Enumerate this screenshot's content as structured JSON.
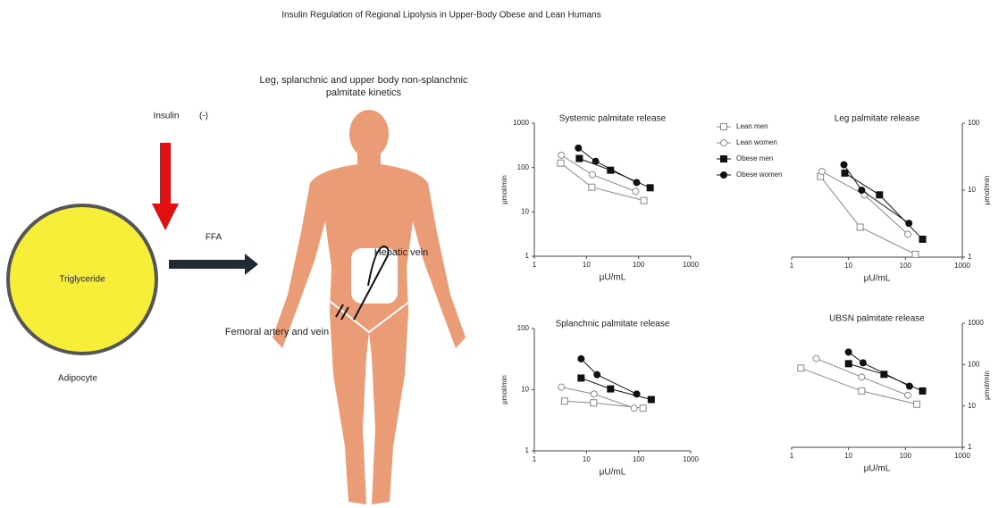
{
  "title": "Insulin Regulation of Regional Lipolysis in Upper-Body Obese and Lean Humans",
  "diagram": {
    "insulin_label": "Insulin",
    "insulin_sign": "(-)",
    "ffa_label": "FFA",
    "cell_label": "Triglyceride",
    "cell_name": "Adipocyte",
    "body_caption_lines": [
      "Leg, splanchnic and upper body non-splanchnic",
      "palmitate kinetics"
    ],
    "hepatic_label": "Hepatic vein",
    "femoral_label": "Femoral artery and vein"
  },
  "chart_data": [
    {
      "type": "scatter",
      "title": "Systemic palmitate release",
      "xlabel": "μU/mL",
      "ylabel": "μmol/min",
      "xlog": true,
      "ylog": true,
      "y_axis_side": "left",
      "xlim": [
        1,
        1000
      ],
      "xticks": [
        1,
        10,
        100,
        1000
      ],
      "ylim": [
        1,
        1000
      ],
      "yticks": [
        1,
        10,
        100,
        1000
      ],
      "series": [
        {
          "name": "Lean men",
          "marker": "open-square",
          "color": "#888888",
          "x": [
            3.2,
            12.7,
            126
          ],
          "values": [
            126,
            36,
            18
          ]
        },
        {
          "name": "Lean women",
          "marker": "open-circle",
          "color": "#888888",
          "x": [
            3.3,
            13,
            88
          ],
          "values": [
            190,
            69,
            29
          ]
        },
        {
          "name": "Obese men",
          "marker": "filled-square",
          "color": "#111111",
          "x": [
            7.3,
            29,
            167
          ],
          "values": [
            160,
            87,
            35
          ]
        },
        {
          "name": "Obese women",
          "marker": "filled-circle",
          "color": "#111111",
          "x": [
            7,
            15,
            92
          ],
          "values": [
            275,
            138,
            46
          ]
        }
      ]
    },
    {
      "type": "scatter",
      "title": "Leg palmitate release",
      "xlabel": "μU/mL",
      "ylabel": "μmol/min",
      "xlog": true,
      "ylog": true,
      "y_axis_side": "right",
      "xlim": [
        1,
        1000
      ],
      "xticks": [
        1,
        10,
        100,
        1000
      ],
      "ylim": [
        1,
        100
      ],
      "yticks": [
        1,
        10,
        100
      ],
      "series": [
        {
          "marker": "open-square",
          "color": "#888888",
          "x": [
            3.2,
            16,
            150
          ],
          "values": [
            16,
            2.8,
            1.1
          ]
        },
        {
          "marker": "open-circle",
          "color": "#888888",
          "x": [
            3.4,
            19,
            110
          ],
          "values": [
            19,
            8.5,
            2.2
          ]
        },
        {
          "marker": "filled-square",
          "color": "#111111",
          "x": [
            8.6,
            35,
            200
          ],
          "values": [
            18,
            8.5,
            1.85
          ]
        },
        {
          "marker": "filled-circle",
          "color": "#111111",
          "x": [
            8.3,
            17,
            115
          ],
          "values": [
            24,
            10,
            3.2
          ]
        }
      ]
    },
    {
      "type": "scatter",
      "title": "Splanchnic palmitate release",
      "xlabel": "μU/mL",
      "ylabel": "μmol/min",
      "xlog": true,
      "ylog": true,
      "y_axis_side": "left",
      "xlim": [
        1,
        1000
      ],
      "xticks": [
        1,
        10,
        100,
        1000
      ],
      "ylim": [
        1,
        100
      ],
      "yticks": [
        1,
        10,
        100
      ],
      "series": [
        {
          "marker": "open-square",
          "color": "#888888",
          "x": [
            3.8,
            13.7,
            122
          ],
          "values": [
            6.5,
            6.1,
            5.0
          ]
        },
        {
          "marker": "open-circle",
          "color": "#888888",
          "x": [
            3.3,
            14,
            82
          ],
          "values": [
            11,
            8.5,
            5
          ]
        },
        {
          "marker": "filled-square",
          "color": "#111111",
          "x": [
            7.9,
            29,
            175
          ],
          "values": [
            15.5,
            10.3,
            6.9
          ]
        },
        {
          "marker": "filled-circle",
          "color": "#111111",
          "x": [
            7.9,
            16,
            92
          ],
          "values": [
            32,
            17.6,
            8.5
          ]
        }
      ]
    },
    {
      "type": "scatter",
      "title": "UBSN palmitate release",
      "xlabel": "μU/mL",
      "ylabel": "μmol/min",
      "xlog": true,
      "ylog": true,
      "y_axis_side": "right",
      "xlim": [
        1,
        1000
      ],
      "xticks": [
        1,
        10,
        100,
        1000
      ],
      "ylim": [
        1,
        1000
      ],
      "yticks": [
        1,
        10,
        100,
        1000
      ],
      "series": [
        {
          "marker": "open-square",
          "color": "#888888",
          "x": [
            1.45,
            17,
            158
          ],
          "values": [
            82,
            23,
            11
          ]
        },
        {
          "marker": "open-circle",
          "color": "#888888",
          "x": [
            2.7,
            17,
            110
          ],
          "values": [
            140,
            50,
            18
          ]
        },
        {
          "marker": "filled-square",
          "color": "#111111",
          "x": [
            10,
            42,
            200
          ],
          "values": [
            105,
            58,
            23
          ]
        },
        {
          "marker": "filled-circle",
          "color": "#111111",
          "x": [
            10,
            18,
            118
          ],
          "values": [
            200,
            110,
            30
          ]
        }
      ]
    }
  ]
}
